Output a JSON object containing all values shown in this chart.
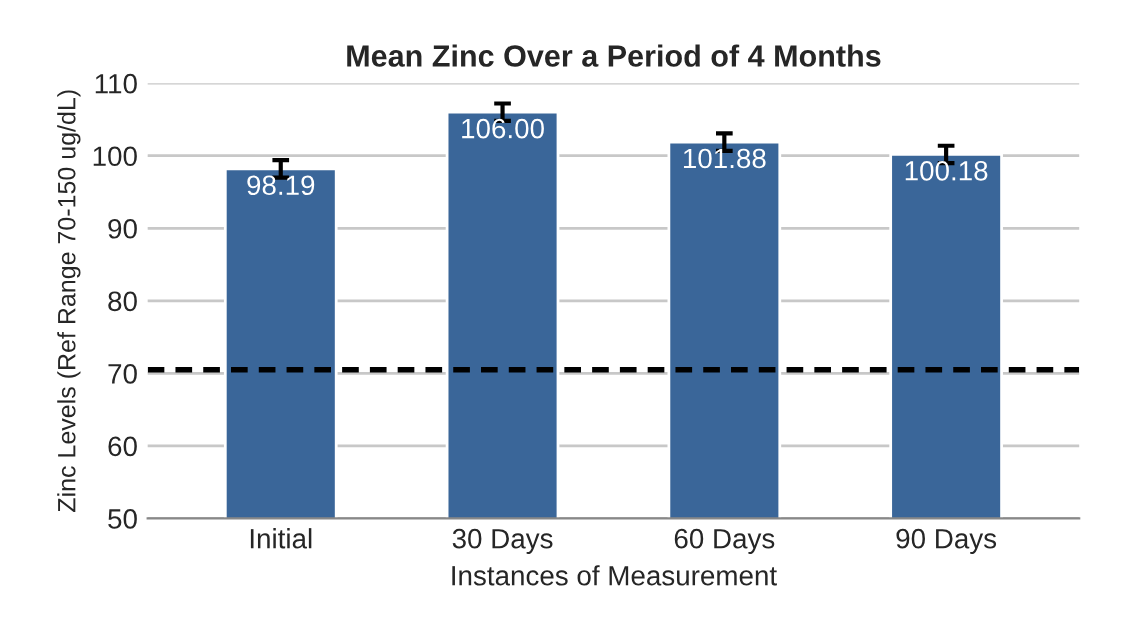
{
  "chart_data": {
    "type": "bar",
    "title": "Mean Zinc Over a Period of 4 Months",
    "xlabel": "Instances of Measurement",
    "ylabel": "Zinc Levels (Ref Range 70-150 ug/dL)",
    "categories": [
      "Initial",
      "30 Days",
      "60 Days",
      "90 Days"
    ],
    "values": [
      98.19,
      106.0,
      101.88,
      100.18
    ],
    "value_labels": [
      "98.19",
      "106.00",
      "101.88",
      "100.18"
    ],
    "errors": [
      1.2,
      1.2,
      1.2,
      1.2
    ],
    "color": "#3a6699",
    "ylim": [
      50,
      110
    ],
    "yticks": [
      50,
      60,
      70,
      80,
      90,
      100,
      110
    ],
    "grid": "y",
    "ref_lines": [
      {
        "axis": "y",
        "value": 70.5,
        "color": "#000000",
        "line_style": "dashed"
      }
    ]
  }
}
